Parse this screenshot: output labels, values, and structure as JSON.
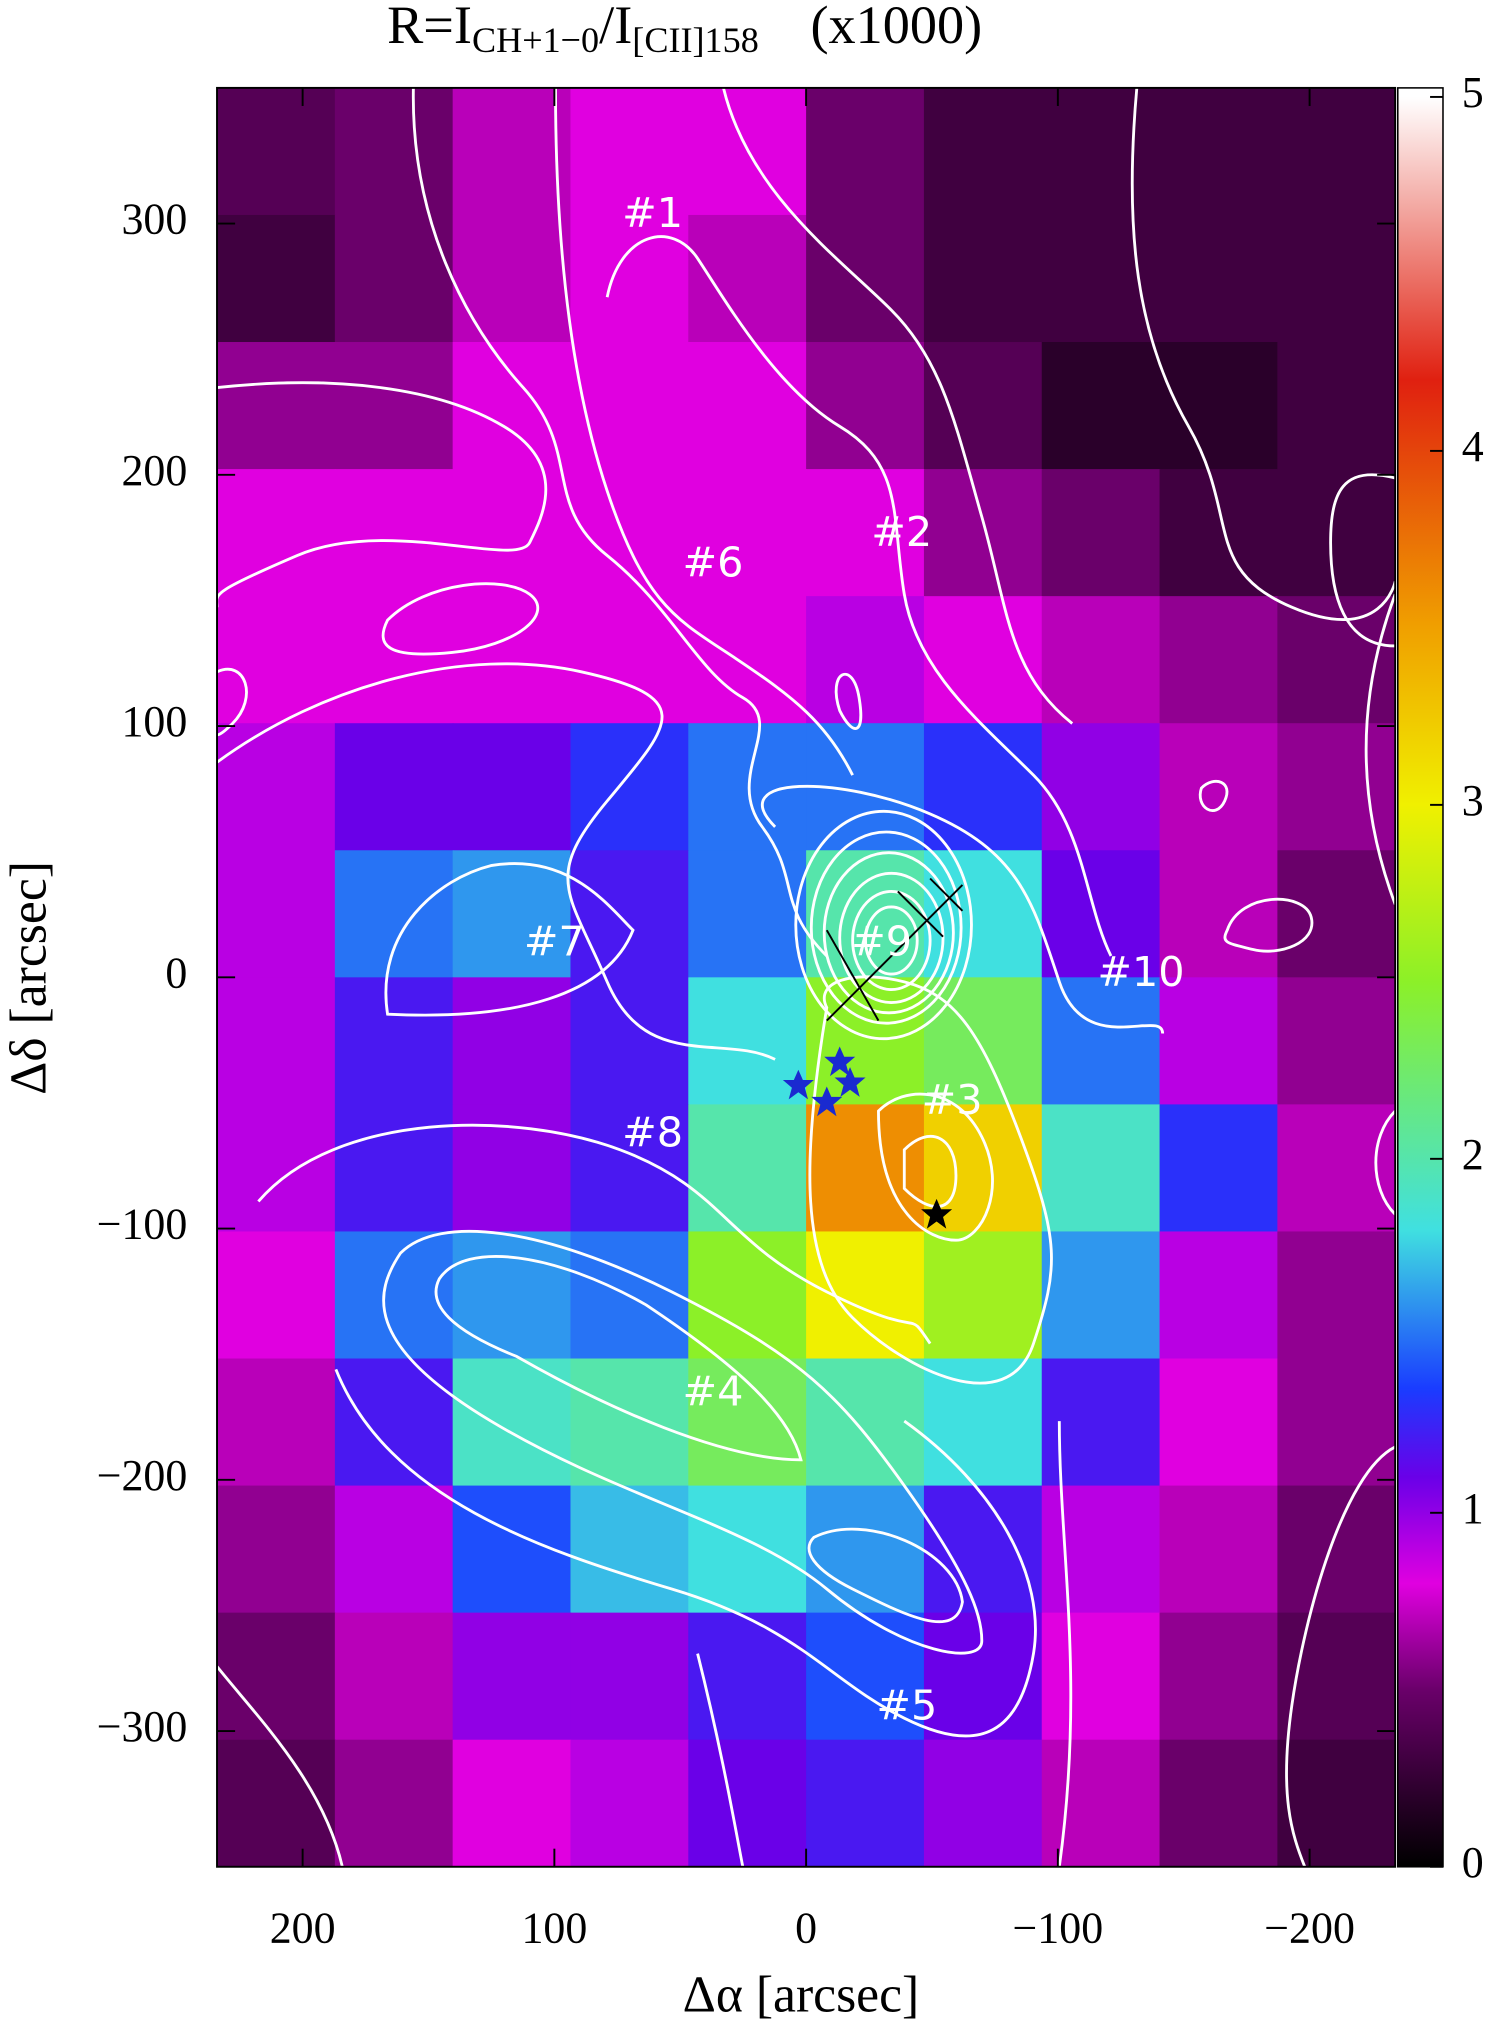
{
  "chart_data": {
    "type": "heatmap",
    "title": {
      "parts": [
        "R=I",
        "CH+1−0",
        "/I",
        "[CII]158",
        "(x1000)"
      ]
    },
    "x_label": "Δα [arcsec]",
    "y_label": "Δδ [arcsec]",
    "xlim": [
      234,
      -234
    ],
    "ylim": [
      -354,
      354
    ],
    "xticks": [
      200,
      100,
      0,
      {
        "value": -100,
        "label": "−100"
      },
      {
        "value": -200,
        "label": "−200"
      }
    ],
    "yticks": [
      300,
      200,
      100,
      0,
      {
        "value": -100,
        "label": "−100"
      },
      {
        "value": -200,
        "label": "−200"
      },
      {
        "value": -300,
        "label": "−300"
      }
    ],
    "clim": [
      0,
      5
    ],
    "cticks": [
      0,
      1,
      2,
      3,
      4,
      5
    ],
    "colormap": [
      {
        "value": 0,
        "color": "#000000"
      },
      {
        "value": 0.5,
        "color": "#6a006a"
      },
      {
        "value": 0.8,
        "color": "#e000e0"
      },
      {
        "value": 1.1,
        "color": "#6a00e8"
      },
      {
        "value": 1.35,
        "color": "#1a3cff"
      },
      {
        "value": 1.8,
        "color": "#40e0e0"
      },
      {
        "value": 2.5,
        "color": "#8cf028"
      },
      {
        "value": 3,
        "color": "#f0f000"
      },
      {
        "value": 3.5,
        "color": "#f0a000"
      },
      {
        "value": 4.2,
        "color": "#e02010"
      },
      {
        "value": 5,
        "color": "#ffffff"
      }
    ],
    "z": [
      [
        0.4,
        0.5,
        0.7,
        0.8,
        0.8,
        0.5,
        0.3,
        0.3,
        0.3,
        0.3
      ],
      [
        0.3,
        0.5,
        0.7,
        0.8,
        0.7,
        0.5,
        0.3,
        0.3,
        0.3,
        0.3
      ],
      [
        0.6,
        0.6,
        0.8,
        0.8,
        0.8,
        0.6,
        0.4,
        0.2,
        0.2,
        0.3
      ],
      [
        0.8,
        0.8,
        0.8,
        0.8,
        0.8,
        0.8,
        0.6,
        0.5,
        0.3,
        0.3
      ],
      [
        0.8,
        0.8,
        0.8,
        0.8,
        0.8,
        0.9,
        0.8,
        0.7,
        0.6,
        0.5
      ],
      [
        0.9,
        1.1,
        1.1,
        1.3,
        1.5,
        1.5,
        1.3,
        1.0,
        0.7,
        0.6
      ],
      [
        0.9,
        1.5,
        1.6,
        1.2,
        1.5,
        2.0,
        1.8,
        1.1,
        0.7,
        0.5
      ],
      [
        0.9,
        1.2,
        1.0,
        1.2,
        1.8,
        2.5,
        2.3,
        1.5,
        0.9,
        0.6
      ],
      [
        0.9,
        1.2,
        1.0,
        1.2,
        2.0,
        3.6,
        3.2,
        1.9,
        1.3,
        0.7
      ],
      [
        0.8,
        1.5,
        1.6,
        1.5,
        2.5,
        3.0,
        2.6,
        1.6,
        0.9,
        0.6
      ],
      [
        0.7,
        1.2,
        1.9,
        2.0,
        2.3,
        2.0,
        1.8,
        1.2,
        0.8,
        0.6
      ],
      [
        0.6,
        0.9,
        1.4,
        1.7,
        1.8,
        1.6,
        1.2,
        0.9,
        0.7,
        0.5
      ],
      [
        0.5,
        0.7,
        1.0,
        1.0,
        1.2,
        1.4,
        1.1,
        0.8,
        0.6,
        0.4
      ],
      [
        0.4,
        0.6,
        0.8,
        0.9,
        1.1,
        1.2,
        1.0,
        0.7,
        0.5,
        0.3
      ]
    ],
    "annotations": [
      {
        "text": "#1",
        "x": 61,
        "y": 303
      },
      {
        "text": "#2",
        "x": -38,
        "y": 176
      },
      {
        "text": "#6",
        "x": 37,
        "y": 164
      },
      {
        "text": "#7",
        "x": 100,
        "y": 13
      },
      {
        "text": "#9",
        "x": -30,
        "y": 13
      },
      {
        "text": "#10",
        "x": -133,
        "y": 1
      },
      {
        "text": "#3",
        "x": -58,
        "y": -50
      },
      {
        "text": "#8",
        "x": 61,
        "y": -63
      },
      {
        "text": "#4",
        "x": 37,
        "y": -166
      },
      {
        "text": "#5",
        "x": -40,
        "y": -291
      }
    ]
  }
}
